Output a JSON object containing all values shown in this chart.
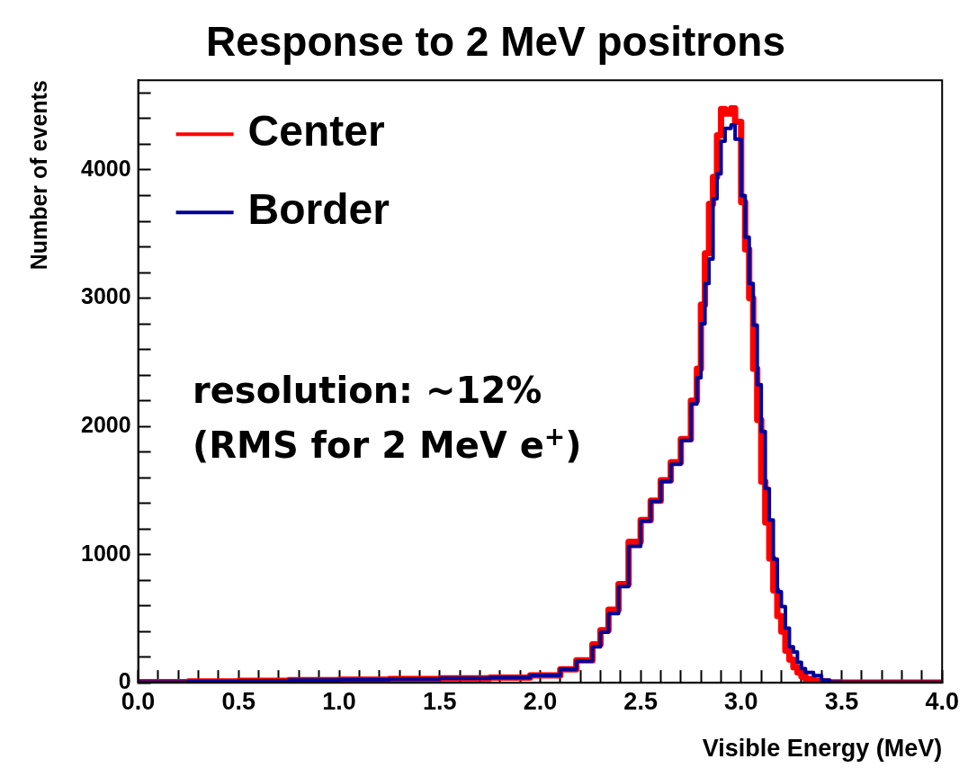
{
  "chart_data": {
    "type": "step",
    "title": "Response to 2 MeV positrons",
    "xlabel": "Visible Energy (MeV)",
    "ylabel": "Number of events",
    "x": [
      0,
      0.25,
      0.5,
      0.75,
      1.0,
      1.25,
      1.5,
      1.75,
      1.95,
      2.1,
      2.18,
      2.26,
      2.3,
      2.34,
      2.39,
      2.44,
      2.5,
      2.55,
      2.6,
      2.65,
      2.7,
      2.75,
      2.78,
      2.8,
      2.82,
      2.84,
      2.86,
      2.88,
      2.9,
      2.92,
      2.95,
      2.97,
      3.0,
      3.02,
      3.04,
      3.06,
      3.08,
      3.1,
      3.12,
      3.14,
      3.16,
      3.18,
      3.2,
      3.22,
      3.24,
      3.26,
      3.28,
      3.3,
      3.32,
      3.36,
      3.4,
      3.44,
      3.5,
      4.0
    ],
    "series": [
      {
        "name": "Center",
        "color": "#ff0000",
        "values": [
          5,
          10,
          15,
          20,
          25,
          30,
          35,
          40,
          57,
          105,
          175,
          300,
          410,
          570,
          770,
          1100,
          1270,
          1420,
          1580,
          1720,
          1900,
          2200,
          2450,
          2950,
          3350,
          3735,
          3945,
          4270,
          4475,
          4440,
          4480,
          4375,
          3750,
          3380,
          3000,
          2450,
          2050,
          1570,
          1250,
          970,
          720,
          520,
          400,
          250,
          180,
          120,
          80,
          50,
          30,
          15,
          8,
          3,
          2,
          2
        ]
      },
      {
        "name": "Border",
        "color": "#000099",
        "values": [
          5,
          10,
          15,
          20,
          25,
          30,
          35,
          40,
          57,
          105,
          170,
          280,
          395,
          540,
          750,
          1065,
          1260,
          1415,
          1570,
          1705,
          1890,
          2175,
          2380,
          2800,
          3115,
          3305,
          3775,
          3970,
          4225,
          4325,
          4350,
          4240,
          3800,
          3475,
          3115,
          2790,
          2325,
          1960,
          1515,
          1270,
          965,
          710,
          595,
          425,
          280,
          240,
          160,
          110,
          80,
          55,
          20,
          5,
          3,
          3
        ]
      }
    ],
    "xlim": [
      0,
      4
    ],
    "xticks": [
      {
        "value": 0,
        "label": "0.0"
      },
      {
        "value": 0.1,
        "label": null
      },
      {
        "value": 0.2,
        "label": null
      },
      {
        "value": 0.3,
        "label": null
      },
      {
        "value": 0.4,
        "label": null
      },
      {
        "value": 0.5,
        "label": "0.5"
      },
      {
        "value": 0.6,
        "label": null
      },
      {
        "value": 0.7,
        "label": null
      },
      {
        "value": 0.8,
        "label": null
      },
      {
        "value": 0.9,
        "label": null
      },
      {
        "value": 1,
        "label": "1.0"
      },
      {
        "value": 1.1,
        "label": null
      },
      {
        "value": 1.2,
        "label": null
      },
      {
        "value": 1.3,
        "label": null
      },
      {
        "value": 1.4,
        "label": null
      },
      {
        "value": 1.5,
        "label": "1.5"
      },
      {
        "value": 1.6,
        "label": null
      },
      {
        "value": 1.7,
        "label": null
      },
      {
        "value": 1.8,
        "label": null
      },
      {
        "value": 1.9,
        "label": null
      },
      {
        "value": 2,
        "label": "2.0"
      },
      {
        "value": 2.1,
        "label": null
      },
      {
        "value": 2.2,
        "label": null
      },
      {
        "value": 2.3,
        "label": null
      },
      {
        "value": 2.4,
        "label": null
      },
      {
        "value": 2.5,
        "label": "2.5"
      },
      {
        "value": 2.6,
        "label": null
      },
      {
        "value": 2.7,
        "label": null
      },
      {
        "value": 2.8,
        "label": null
      },
      {
        "value": 2.9,
        "label": null
      },
      {
        "value": 3,
        "label": "3.0"
      },
      {
        "value": 3.1,
        "label": null
      },
      {
        "value": 3.2,
        "label": null
      },
      {
        "value": 3.3,
        "label": null
      },
      {
        "value": 3.4,
        "label": null
      },
      {
        "value": 3.5,
        "label": "3.5"
      },
      {
        "value": 3.6,
        "label": null
      },
      {
        "value": 3.7,
        "label": null
      },
      {
        "value": 3.8,
        "label": null
      },
      {
        "value": 3.9,
        "label": null
      },
      {
        "value": 4,
        "label": "4.0"
      }
    ],
    "ylim": [
      0,
      4700
    ],
    "yticks": [
      0,
      {
        "value": 200,
        "label": null
      },
      {
        "value": 400,
        "label": null
      },
      {
        "value": 600,
        "label": null
      },
      {
        "value": 800,
        "label": null
      },
      1000,
      {
        "value": 1200,
        "label": null
      },
      {
        "value": 1400,
        "label": null
      },
      {
        "value": 1600,
        "label": null
      },
      {
        "value": 1800,
        "label": null
      },
      2000,
      {
        "value": 2200,
        "label": null
      },
      {
        "value": 2400,
        "label": null
      },
      {
        "value": 2600,
        "label": null
      },
      {
        "value": 2800,
        "label": null
      },
      3000,
      {
        "value": 3200,
        "label": null
      },
      {
        "value": 3400,
        "label": null
      },
      {
        "value": 3600,
        "label": null
      },
      {
        "value": 3800,
        "label": null
      },
      4000,
      {
        "value": 4200,
        "label": null
      },
      {
        "value": 4400,
        "label": null
      },
      {
        "value": 4600,
        "label": null
      }
    ],
    "annotations": [
      "resolution: ~12%",
      "(RMS for 2 MeV e$^{+}$)"
    ],
    "legend": "top left",
    "grid": false,
    "marker": "none",
    "line_style": "solid"
  }
}
